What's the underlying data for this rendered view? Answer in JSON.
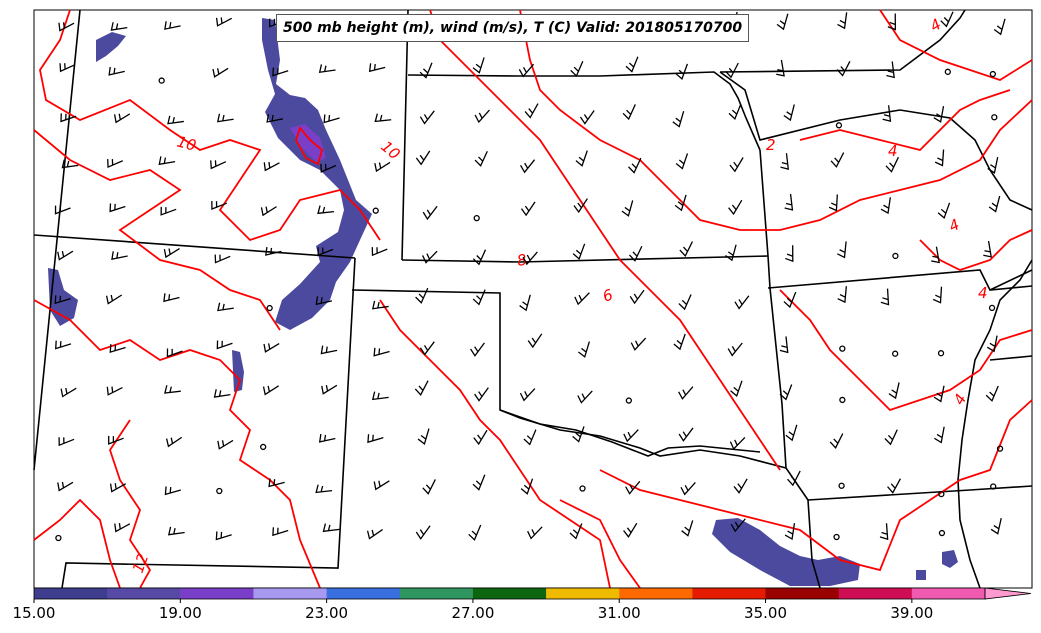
{
  "title": "500 mb height (m), wind (m/s), T (C) Valid: 201805170700",
  "contour_labels": [
    "10",
    "10",
    "8",
    "6",
    "2",
    "4",
    "4",
    "4",
    "4",
    "4",
    "12"
  ],
  "colorbar": {
    "min": 15,
    "max": 41,
    "tick_labels": [
      "15.00",
      "19.00",
      "23.00",
      "27.00",
      "31.00",
      "35.00",
      "39.00"
    ],
    "tick_values": [
      15,
      19,
      23,
      27,
      31,
      35,
      39
    ],
    "colors": [
      "#3e3d8e",
      "#574aa6",
      "#7a3fc9",
      "#a799f0",
      "#3a6fe0",
      "#2f9660",
      "#0c6610",
      "#efbb00",
      "#ff6a00",
      "#e51b00",
      "#990000",
      "#cf0d55",
      "#f05ab0",
      "#ff9ad0"
    ]
  },
  "colors": {
    "contour": "#ff0000",
    "border": "#000000",
    "shade": "#4a4aa0"
  }
}
